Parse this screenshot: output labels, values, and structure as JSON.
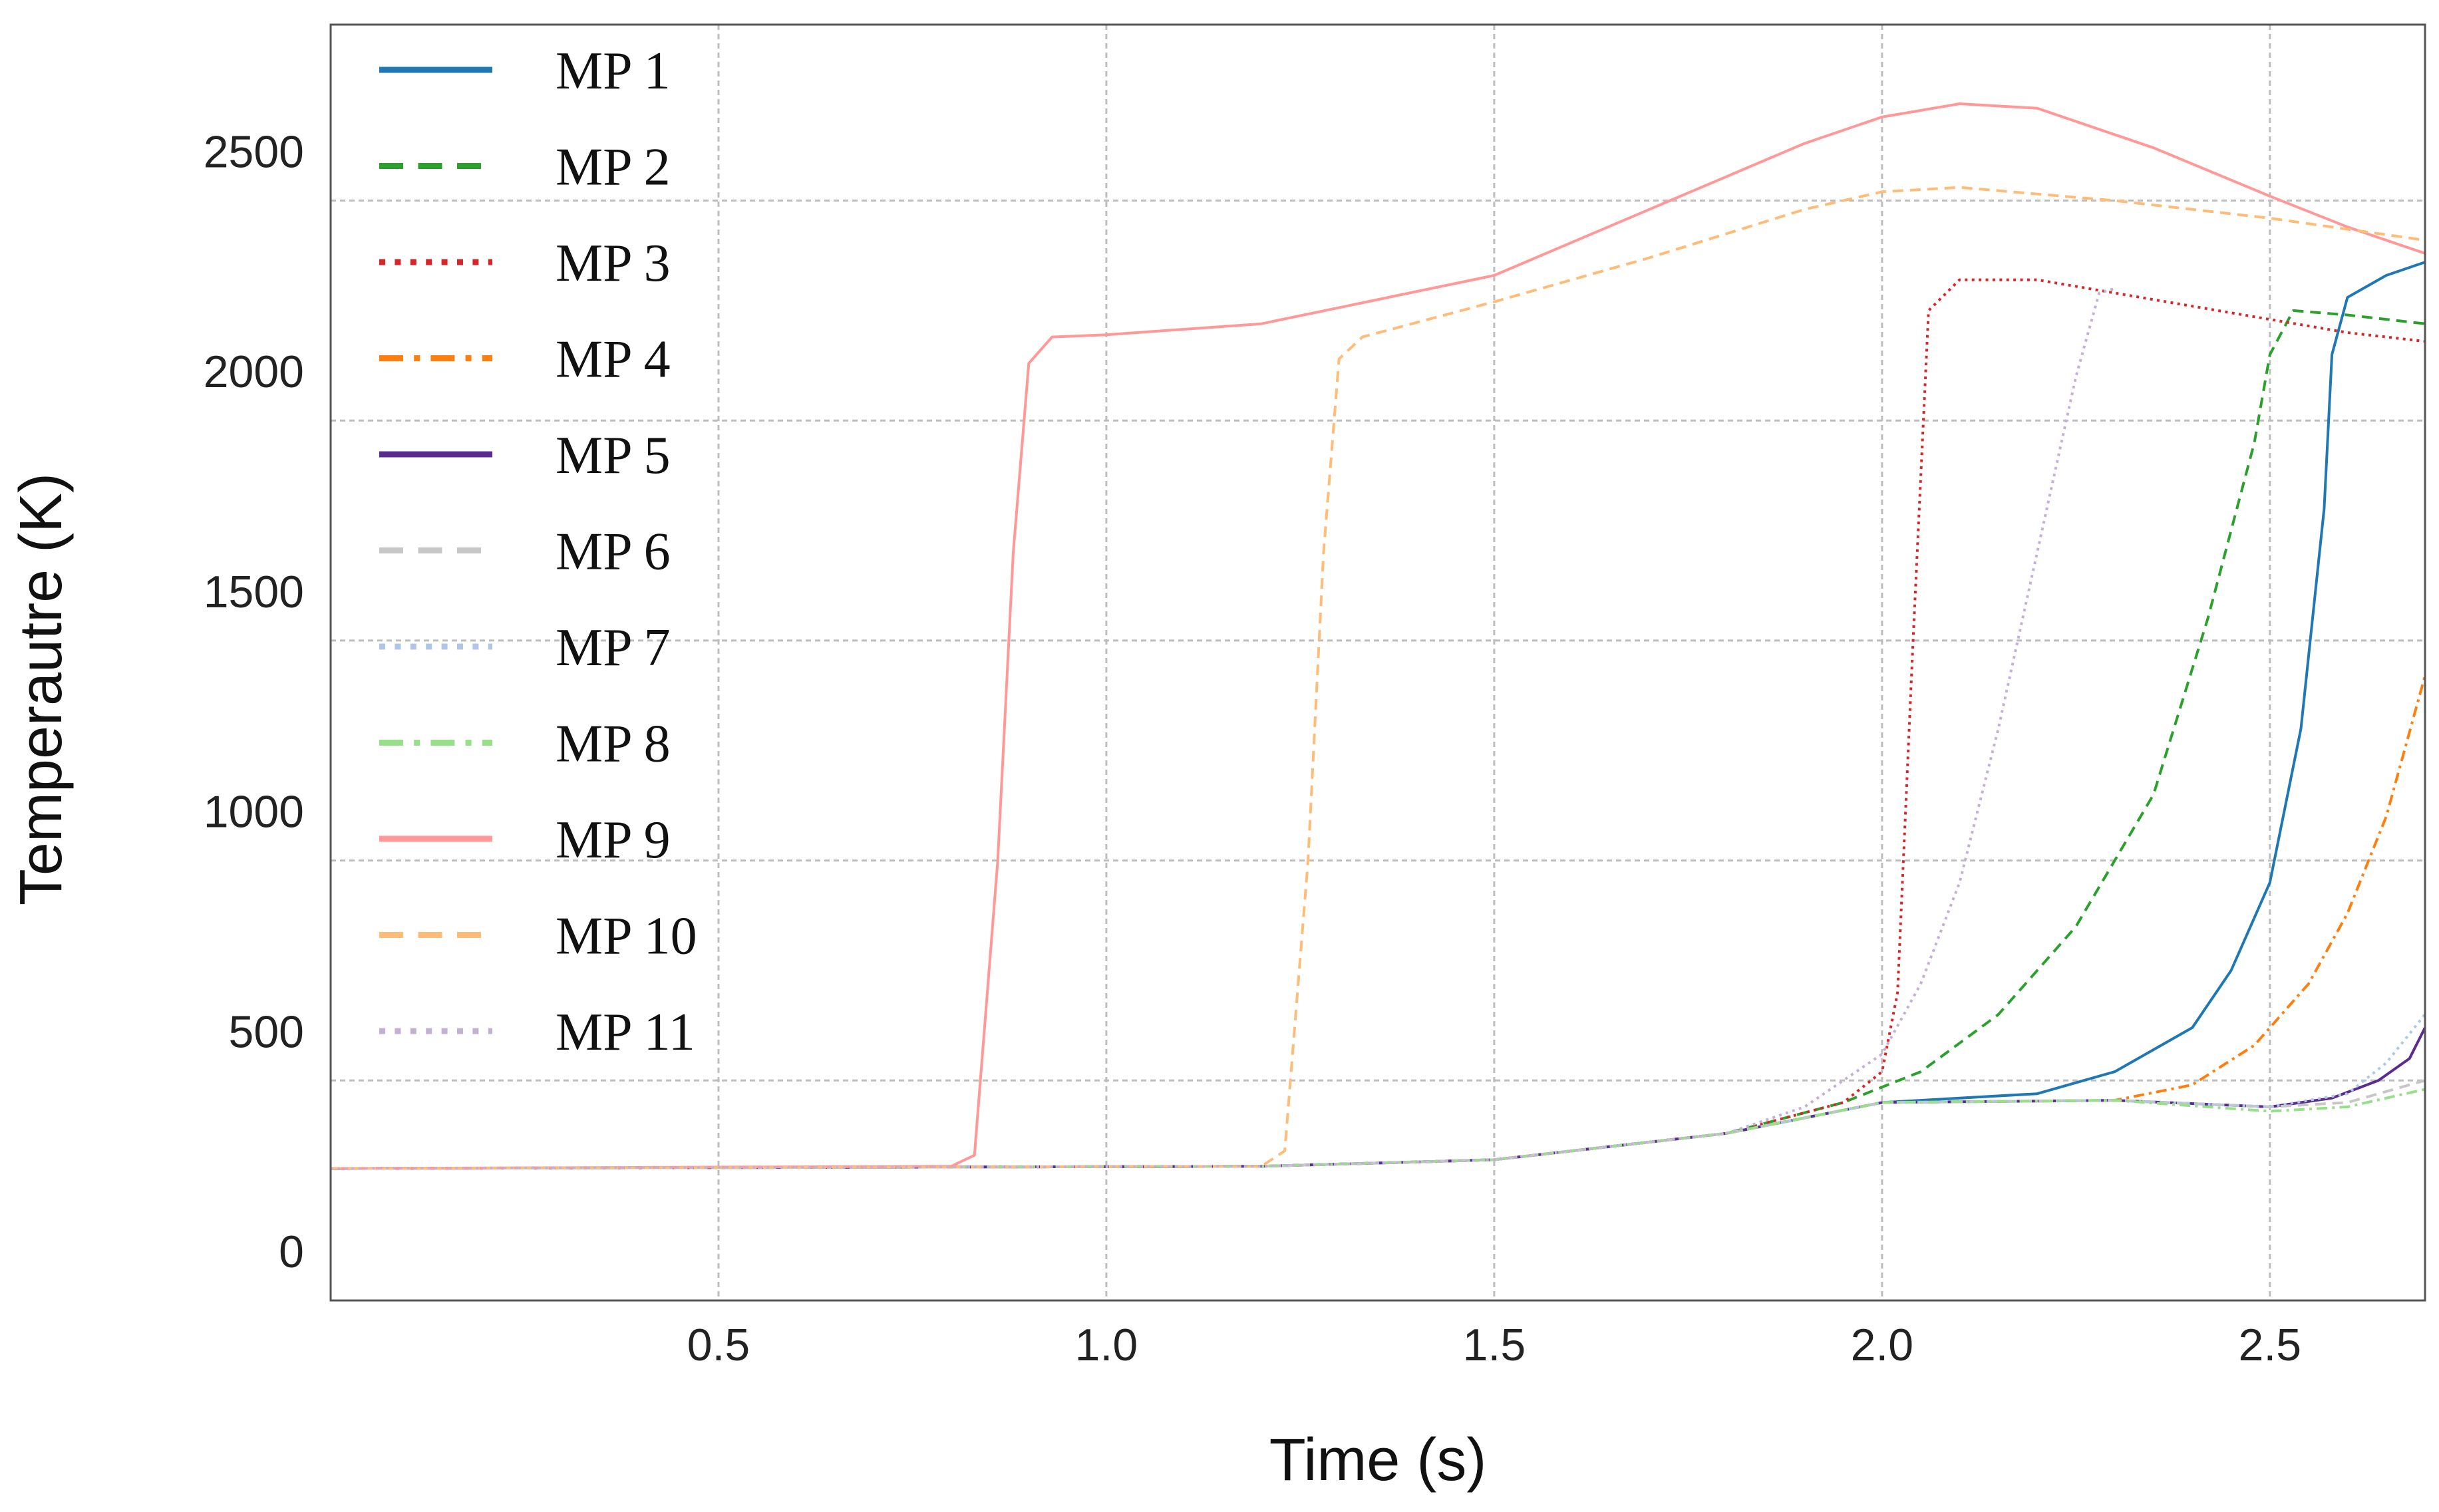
{
  "chart_data": {
    "type": "line",
    "title": "",
    "xlabel": "Time (s)",
    "ylabel": "Temperautre (K)",
    "xlim": [
      0,
      2.7
    ],
    "ylim": [
      0,
      2900
    ],
    "yticks": [
      0,
      500,
      1000,
      1500,
      2000,
      2500
    ],
    "xticks": [
      0.5,
      1.0,
      1.5,
      2.0,
      2.5
    ],
    "xtick_labels": [
      "0.5",
      "1.0",
      "1.5",
      "2.0",
      "2.5"
    ],
    "ytick_labels": [
      "0",
      "500",
      "1000",
      "1500",
      "2000",
      "2500"
    ],
    "grid": true,
    "legend_position": "top-left",
    "series": [
      {
        "name": "MP 1",
        "color": "#1f77b4",
        "dash": "solid",
        "points": [
          [
            0,
            300
          ],
          [
            1.2,
            305
          ],
          [
            1.5,
            320
          ],
          [
            1.8,
            380
          ],
          [
            2.0,
            450
          ],
          [
            2.2,
            470
          ],
          [
            2.3,
            520
          ],
          [
            2.4,
            620
          ],
          [
            2.45,
            750
          ],
          [
            2.5,
            950
          ],
          [
            2.54,
            1300
          ],
          [
            2.57,
            1800
          ],
          [
            2.58,
            2150
          ],
          [
            2.6,
            2280
          ],
          [
            2.65,
            2330
          ],
          [
            2.7,
            2360
          ]
        ]
      },
      {
        "name": "MP 2",
        "color": "#2ca02c",
        "dash": "dashed",
        "points": [
          [
            0,
            300
          ],
          [
            1.2,
            305
          ],
          [
            1.5,
            320
          ],
          [
            1.8,
            380
          ],
          [
            1.95,
            450
          ],
          [
            2.05,
            520
          ],
          [
            2.15,
            650
          ],
          [
            2.25,
            850
          ],
          [
            2.35,
            1150
          ],
          [
            2.42,
            1550
          ],
          [
            2.48,
            1950
          ],
          [
            2.5,
            2150
          ],
          [
            2.53,
            2250
          ],
          [
            2.6,
            2240
          ],
          [
            2.7,
            2220
          ]
        ]
      },
      {
        "name": "MP 3",
        "color": "#d62728",
        "dash": "dotted",
        "points": [
          [
            0,
            300
          ],
          [
            1.2,
            305
          ],
          [
            1.5,
            320
          ],
          [
            1.8,
            380
          ],
          [
            1.95,
            450
          ],
          [
            2.0,
            520
          ],
          [
            2.02,
            700
          ],
          [
            2.04,
            1500
          ],
          [
            2.06,
            2250
          ],
          [
            2.1,
            2320
          ],
          [
            2.2,
            2320
          ],
          [
            2.4,
            2260
          ],
          [
            2.6,
            2200
          ],
          [
            2.7,
            2180
          ]
        ]
      },
      {
        "name": "MP 4",
        "color": "#ff7f0e",
        "dash": "dashdot",
        "points": [
          [
            0,
            300
          ],
          [
            1.2,
            305
          ],
          [
            1.5,
            320
          ],
          [
            1.8,
            380
          ],
          [
            2.0,
            450
          ],
          [
            2.3,
            455
          ],
          [
            2.4,
            490
          ],
          [
            2.48,
            580
          ],
          [
            2.55,
            720
          ],
          [
            2.6,
            880
          ],
          [
            2.65,
            1100
          ],
          [
            2.7,
            1420
          ]
        ]
      },
      {
        "name": "MP 5",
        "color": "#5b2c8f",
        "dash": "solid",
        "points": [
          [
            0,
            300
          ],
          [
            1.2,
            305
          ],
          [
            1.5,
            320
          ],
          [
            1.8,
            380
          ],
          [
            2.0,
            450
          ],
          [
            2.3,
            455
          ],
          [
            2.5,
            440
          ],
          [
            2.58,
            460
          ],
          [
            2.64,
            500
          ],
          [
            2.68,
            550
          ],
          [
            2.7,
            620
          ]
        ]
      },
      {
        "name": "MP 6",
        "color": "#c7c7c7",
        "dash": "dashed",
        "points": [
          [
            0,
            300
          ],
          [
            1.2,
            305
          ],
          [
            1.5,
            320
          ],
          [
            1.8,
            380
          ],
          [
            2.0,
            450
          ],
          [
            2.3,
            455
          ],
          [
            2.5,
            440
          ],
          [
            2.6,
            450
          ],
          [
            2.7,
            500
          ]
        ]
      },
      {
        "name": "MP 7",
        "color": "#aec7e8",
        "dash": "dotted",
        "points": [
          [
            0,
            300
          ],
          [
            1.2,
            305
          ],
          [
            1.5,
            320
          ],
          [
            1.8,
            380
          ],
          [
            2.0,
            450
          ],
          [
            2.3,
            455
          ],
          [
            2.5,
            440
          ],
          [
            2.6,
            470
          ],
          [
            2.65,
            540
          ],
          [
            2.7,
            650
          ]
        ]
      },
      {
        "name": "MP 8",
        "color": "#98df8a",
        "dash": "dashdot",
        "points": [
          [
            0,
            300
          ],
          [
            1.2,
            305
          ],
          [
            1.5,
            320
          ],
          [
            1.8,
            380
          ],
          [
            2.0,
            450
          ],
          [
            2.3,
            455
          ],
          [
            2.5,
            430
          ],
          [
            2.6,
            440
          ],
          [
            2.7,
            480
          ]
        ]
      },
      {
        "name": "MP 9",
        "color": "#ff9896",
        "dash": "solid",
        "points": [
          [
            0,
            300
          ],
          [
            0.8,
            305
          ],
          [
            0.83,
            330
          ],
          [
            0.86,
            1000
          ],
          [
            0.88,
            1700
          ],
          [
            0.9,
            2130
          ],
          [
            0.93,
            2190
          ],
          [
            1.0,
            2195
          ],
          [
            1.2,
            2220
          ],
          [
            1.5,
            2330
          ],
          [
            1.7,
            2480
          ],
          [
            1.9,
            2630
          ],
          [
            2.0,
            2690
          ],
          [
            2.1,
            2720
          ],
          [
            2.2,
            2710
          ],
          [
            2.35,
            2620
          ],
          [
            2.5,
            2510
          ],
          [
            2.6,
            2440
          ],
          [
            2.7,
            2380
          ]
        ]
      },
      {
        "name": "MP 10",
        "color": "#ffbb78",
        "dash": "dashed",
        "points": [
          [
            0,
            300
          ],
          [
            1.2,
            305
          ],
          [
            1.23,
            340
          ],
          [
            1.26,
            1000
          ],
          [
            1.28,
            1700
          ],
          [
            1.3,
            2140
          ],
          [
            1.33,
            2190
          ],
          [
            1.5,
            2270
          ],
          [
            1.7,
            2370
          ],
          [
            1.9,
            2480
          ],
          [
            2.0,
            2520
          ],
          [
            2.1,
            2530
          ],
          [
            2.3,
            2500
          ],
          [
            2.5,
            2460
          ],
          [
            2.7,
            2410
          ]
        ]
      },
      {
        "name": "MP 11",
        "color": "#c5b0d5",
        "dash": "dotted",
        "points": [
          [
            0,
            300
          ],
          [
            1.2,
            305
          ],
          [
            1.5,
            320
          ],
          [
            1.8,
            380
          ],
          [
            1.9,
            440
          ],
          [
            2.0,
            560
          ],
          [
            2.05,
            720
          ],
          [
            2.1,
            950
          ],
          [
            2.15,
            1300
          ],
          [
            2.2,
            1700
          ],
          [
            2.25,
            2100
          ],
          [
            2.28,
            2290
          ],
          [
            2.3,
            2300
          ]
        ]
      }
    ]
  }
}
